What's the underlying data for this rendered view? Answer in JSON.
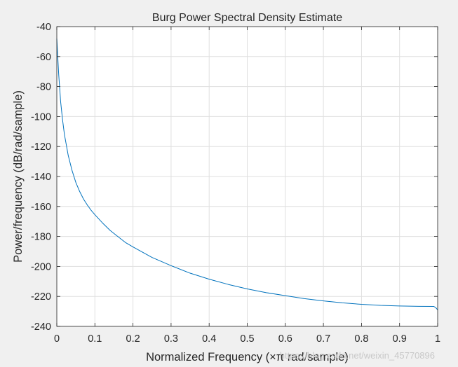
{
  "chart_data": {
    "type": "line",
    "title": "Burg Power Spectral Density Estimate",
    "xlabel": "Normalized Frequency  (×π rad/sample)",
    "ylabel": "Power/frequency (dB/rad/sample)",
    "xlim": [
      0,
      1
    ],
    "ylim": [
      -240,
      -40
    ],
    "xticks": [
      0,
      0.1,
      0.2,
      0.3,
      0.4,
      0.5,
      0.6,
      0.7,
      0.8,
      0.9,
      1
    ],
    "xtick_labels": [
      "0",
      "0.1",
      "0.2",
      "0.3",
      "0.4",
      "0.5",
      "0.6",
      "0.7",
      "0.8",
      "0.9",
      "1"
    ],
    "yticks": [
      -240,
      -220,
      -200,
      -180,
      -160,
      -140,
      -120,
      -100,
      -80,
      -60,
      -40
    ],
    "ytick_labels": [
      "-240",
      "-220",
      "-200",
      "-180",
      "-160",
      "-140",
      "-120",
      "-100",
      "-80",
      "-60",
      "-40"
    ],
    "grid": true,
    "series": [
      {
        "color": "#0072bd",
        "x": [
          0,
          0.002,
          0.005,
          0.01,
          0.015,
          0.02,
          0.025,
          0.03,
          0.04,
          0.05,
          0.06,
          0.07,
          0.08,
          0.09,
          0.1,
          0.12,
          0.14,
          0.16,
          0.18,
          0.2,
          0.25,
          0.3,
          0.35,
          0.4,
          0.45,
          0.5,
          0.55,
          0.6,
          0.65,
          0.7,
          0.75,
          0.8,
          0.85,
          0.9,
          0.95,
          0.99,
          0.995,
          1.0
        ],
        "y": [
          -48,
          -58,
          -72,
          -90,
          -102,
          -112,
          -119,
          -126,
          -136,
          -144,
          -150,
          -155,
          -159,
          -162.5,
          -165.5,
          -171,
          -176,
          -180,
          -184,
          -187,
          -194,
          -199.5,
          -204.5,
          -208.5,
          -212,
          -215,
          -217.5,
          -219.5,
          -221.5,
          -223,
          -224.3,
          -225.3,
          -226,
          -226.4,
          -226.6,
          -226.7,
          -227.5,
          -229
        ]
      }
    ]
  },
  "watermark": "https://blog.csdn.net/weixin_45770896"
}
